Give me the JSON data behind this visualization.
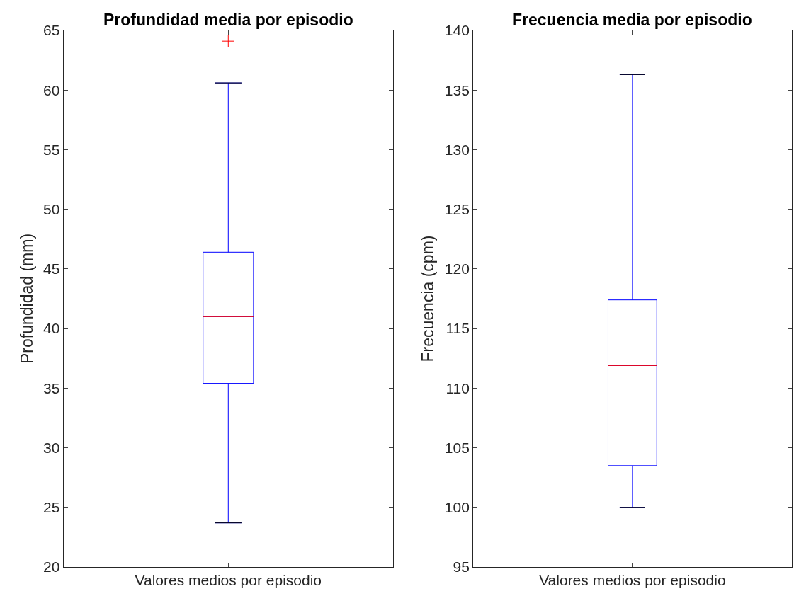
{
  "chart_data": [
    {
      "type": "box",
      "title": "Profundidad media por episodio",
      "ylabel": "Profundidad (mm)",
      "categories": [
        "Valores medios por episodio"
      ],
      "color": "#0000ff",
      "boxes": [
        {
          "low": 23.7,
          "q1": 35.4,
          "median": 41.0,
          "q3": 46.4,
          "high": 60.6,
          "outliers": [
            64.1
          ]
        }
      ],
      "ylim": [
        20,
        65
      ],
      "yticks": [
        20,
        25,
        30,
        35,
        40,
        45,
        50,
        55,
        60,
        65
      ]
    },
    {
      "type": "box",
      "title": "Frecuencia media por episodio",
      "ylabel": "Frecuencia (cpm)",
      "categories": [
        "Valores medios por episodio"
      ],
      "color": "#0000ff",
      "boxes": [
        {
          "low": 100.0,
          "q1": 103.5,
          "median": 111.9,
          "q3": 117.4,
          "high": 136.3
        }
      ],
      "ylim": [
        95,
        140
      ],
      "yticks": [
        95,
        100,
        105,
        110,
        115,
        120,
        125,
        130,
        135,
        140
      ]
    }
  ]
}
